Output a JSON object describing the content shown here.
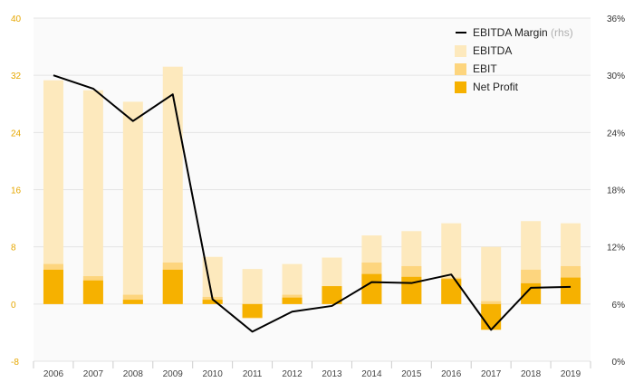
{
  "chart_data": {
    "type": "bar",
    "categories": [
      "2006",
      "2007",
      "2008",
      "2009",
      "2010",
      "2011",
      "2012",
      "2013",
      "2014",
      "2015",
      "2016",
      "2017",
      "2018",
      "2019"
    ],
    "series": [
      {
        "name": "EBITDA",
        "kind": "bar",
        "color": "#fde9bd",
        "values": [
          31.3,
          29.9,
          28.3,
          33.2,
          6.6,
          4.9,
          5.6,
          6.5,
          9.6,
          10.2,
          11.3,
          8.0,
          11.6,
          11.3
        ]
      },
      {
        "name": "EBIT",
        "kind": "bar",
        "color": "#fdd57e",
        "values": [
          5.6,
          3.9,
          1.3,
          5.8,
          1.0,
          -2.0,
          1.3,
          2.5,
          5.8,
          5.3,
          3.7,
          0.4,
          4.8,
          5.3
        ]
      },
      {
        "name": "Net Profit",
        "kind": "bar",
        "color": "#f6b100",
        "values": [
          4.8,
          3.3,
          0.6,
          4.8,
          0.6,
          -1.9,
          0.9,
          2.5,
          4.2,
          3.8,
          3.5,
          -3.6,
          2.9,
          3.7
        ]
      },
      {
        "name": "EBITDA Margin",
        "name_suffix": "(rhs)",
        "kind": "line",
        "axis": "right",
        "color": "#000000",
        "values": [
          30.0,
          28.6,
          25.2,
          28.0,
          6.5,
          3.1,
          5.2,
          5.8,
          8.3,
          8.2,
          9.1,
          3.3,
          7.7,
          7.8
        ]
      }
    ],
    "y_left": {
      "min": -8,
      "max": 40,
      "ticks": [
        -8,
        0,
        8,
        16,
        24,
        32,
        40
      ],
      "color": "#e6a700"
    },
    "y_right": {
      "min": 0,
      "max": 36,
      "ticks": [
        "0%",
        "6%",
        "12%",
        "18%",
        "24%",
        "30%",
        "36%"
      ]
    },
    "grid": true,
    "legend_position": "top-right",
    "background": "#fafafa"
  }
}
